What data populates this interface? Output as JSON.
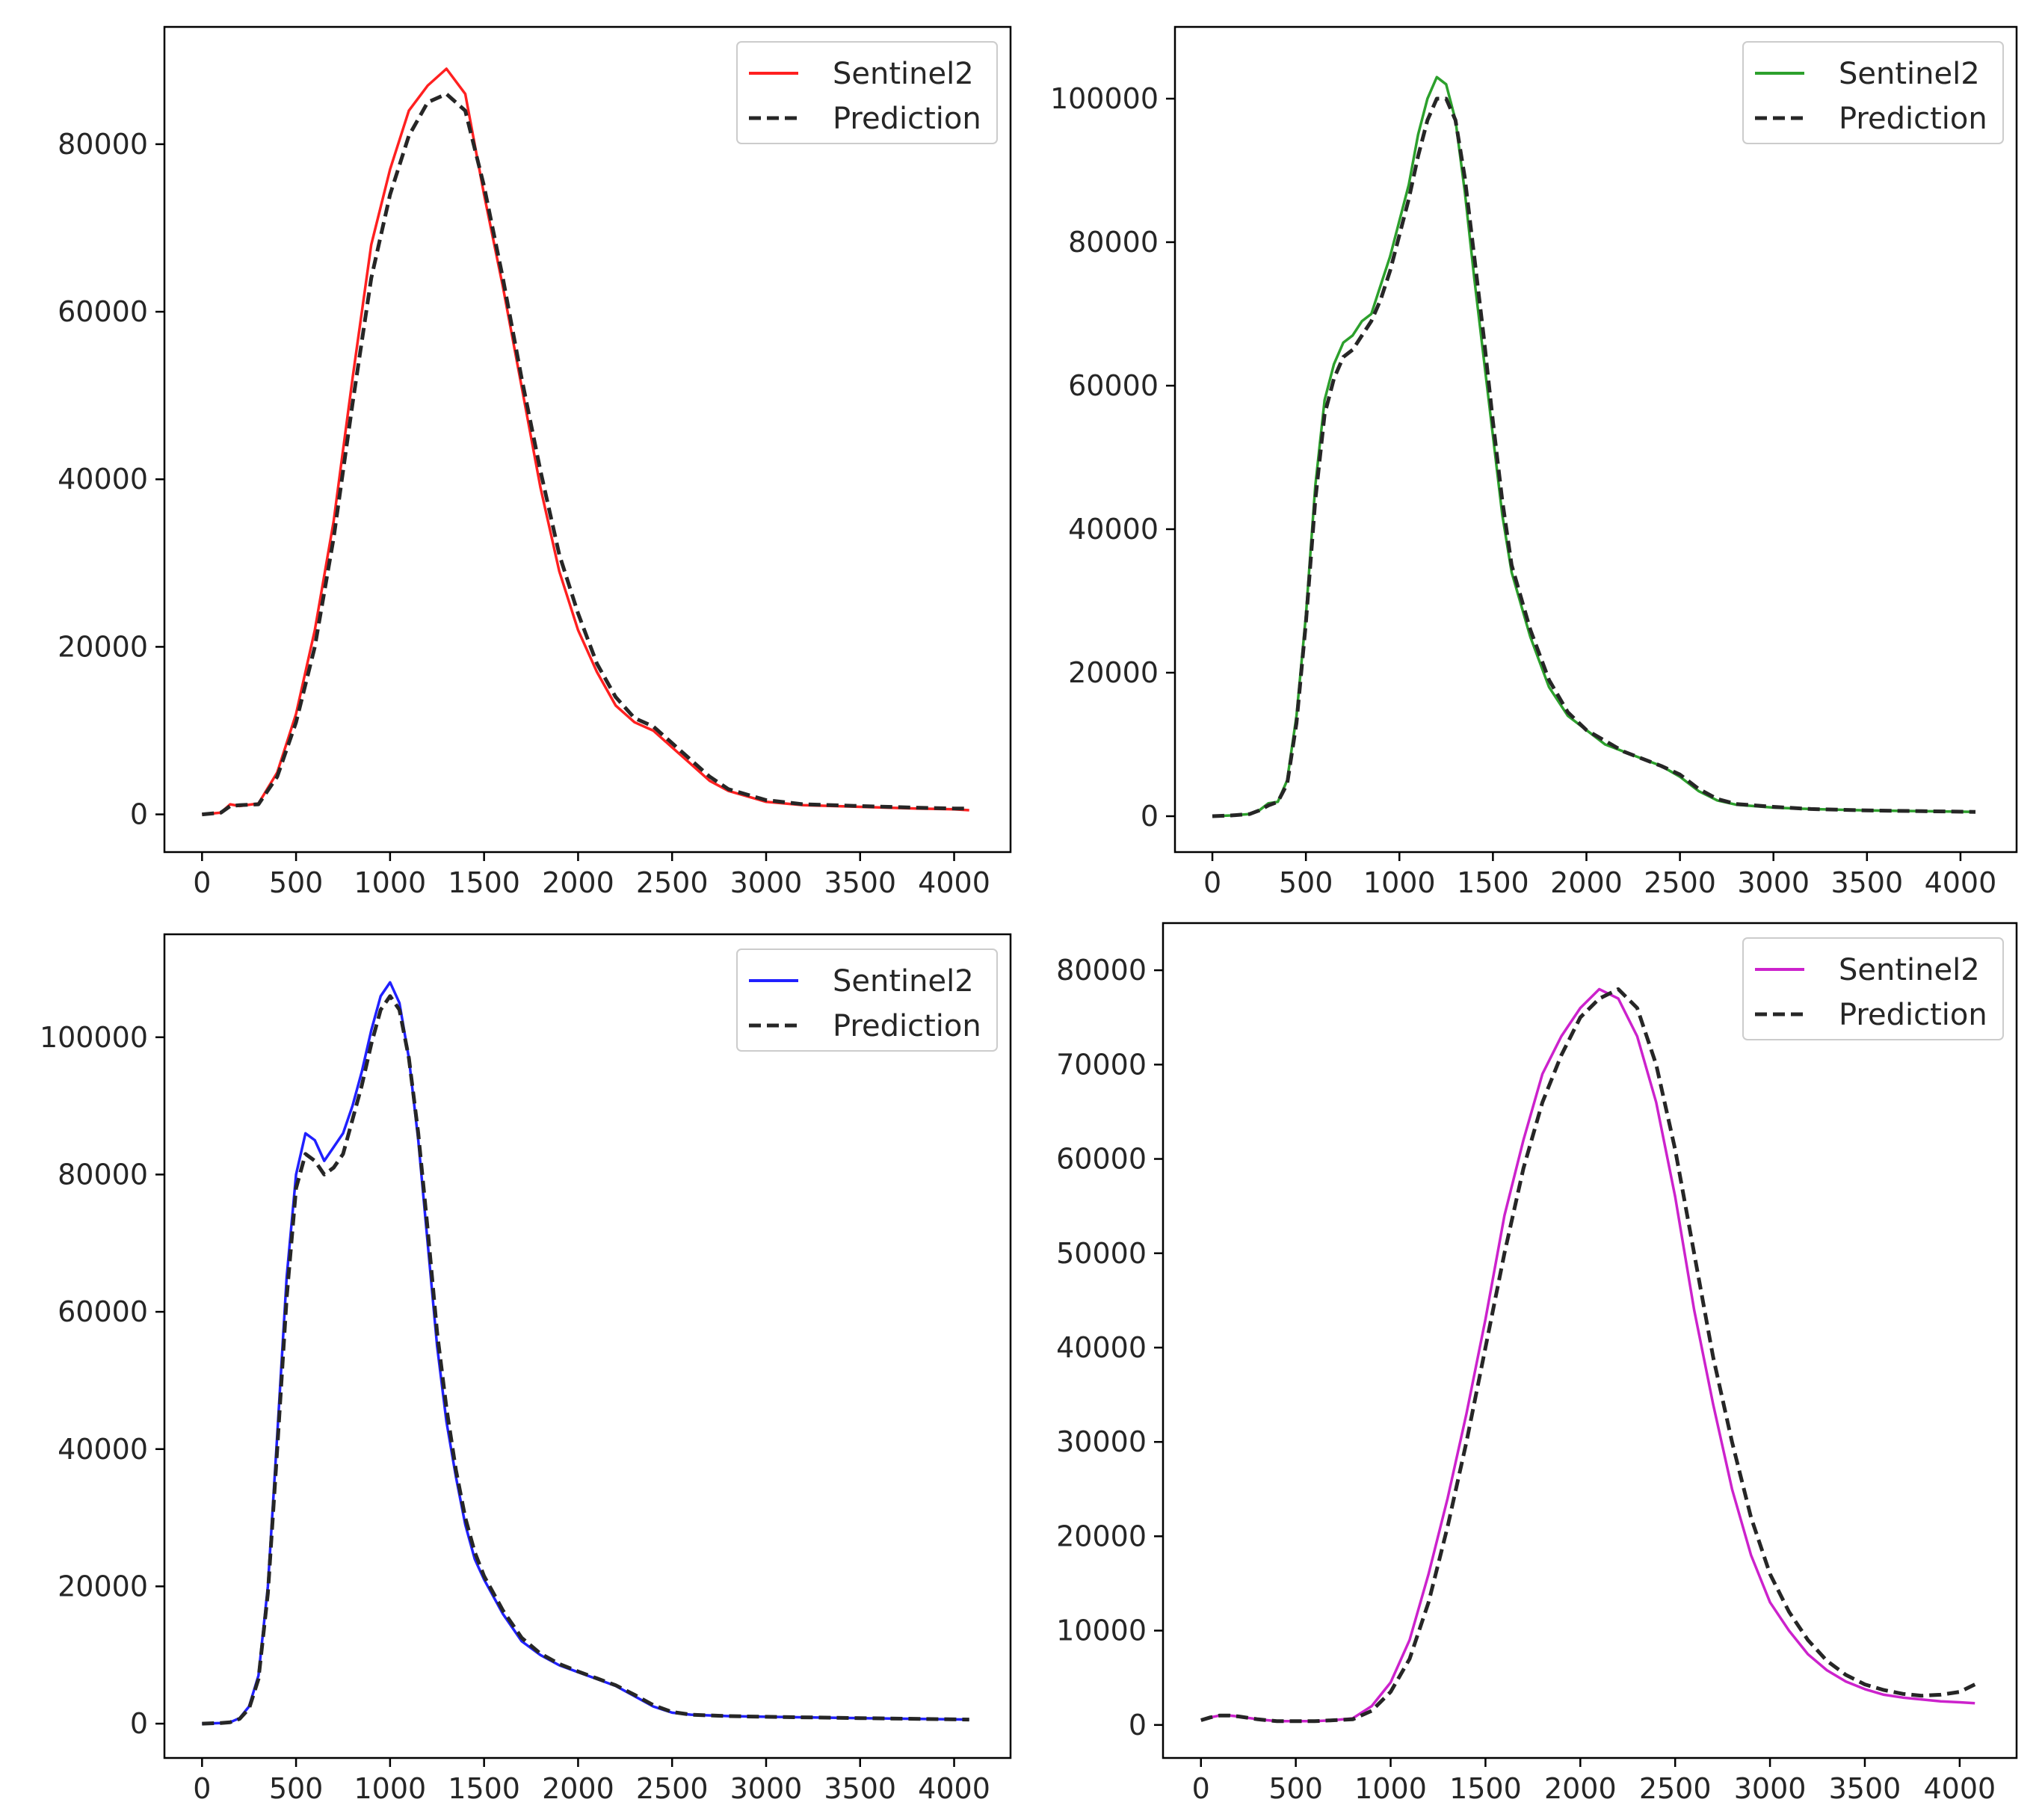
{
  "chart_data": [
    {
      "type": "line",
      "id": "panel-red",
      "title": "",
      "xlabel": "",
      "ylabel": "",
      "xlim": [
        -200,
        4300
      ],
      "ylim": [
        -4500,
        94000
      ],
      "xticks": [
        0,
        500,
        1000,
        1500,
        2000,
        2500,
        3000,
        3500,
        4000
      ],
      "yticks": [
        0,
        20000,
        40000,
        60000,
        80000
      ],
      "legend_position": "top-right",
      "series": [
        {
          "name": "Sentinel2",
          "color": "#ff2020",
          "style": "solid",
          "x": [
            0,
            100,
            150,
            200,
            300,
            400,
            500,
            600,
            700,
            800,
            900,
            1000,
            1100,
            1200,
            1300,
            1400,
            1500,
            1600,
            1700,
            1800,
            1900,
            2000,
            2100,
            2200,
            2300,
            2400,
            2500,
            2600,
            2700,
            2800,
            3000,
            3200,
            3500,
            3800,
            4000,
            4080
          ],
          "y": [
            0,
            200,
            1200,
            1000,
            1300,
            5000,
            12000,
            22000,
            35000,
            52000,
            68000,
            77000,
            84000,
            87000,
            89000,
            86000,
            74000,
            63000,
            51000,
            39000,
            29000,
            22000,
            17000,
            13000,
            11000,
            10000,
            8000,
            6000,
            4000,
            2800,
            1500,
            1100,
            900,
            700,
            600,
            500
          ]
        },
        {
          "name": "Prediction",
          "color": "#262626",
          "style": "dashed",
          "x": [
            0,
            100,
            150,
            200,
            300,
            400,
            500,
            600,
            700,
            800,
            900,
            1000,
            1100,
            1200,
            1300,
            1400,
            1500,
            1600,
            1700,
            1800,
            1900,
            2000,
            2100,
            2200,
            2300,
            2400,
            2500,
            2600,
            2700,
            2800,
            3000,
            3200,
            3500,
            3800,
            4000,
            4080
          ],
          "y": [
            0,
            200,
            1000,
            1100,
            1200,
            4500,
            11000,
            20000,
            33000,
            49000,
            64000,
            74000,
            81000,
            85000,
            86000,
            84000,
            75000,
            64000,
            52000,
            41000,
            31000,
            24000,
            18000,
            14000,
            11500,
            10500,
            8500,
            6500,
            4500,
            3000,
            1700,
            1200,
            1000,
            800,
            700,
            700
          ]
        }
      ],
      "legend": [
        "Sentinel2",
        "Prediction"
      ]
    },
    {
      "type": "line",
      "id": "panel-green",
      "title": "",
      "xlabel": "",
      "ylabel": "",
      "xlim": [
        -200,
        4300
      ],
      "ylim": [
        -5000,
        110000
      ],
      "xticks": [
        0,
        500,
        1000,
        1500,
        2000,
        2500,
        3000,
        3500,
        4000
      ],
      "yticks": [
        0,
        20000,
        40000,
        60000,
        80000,
        100000
      ],
      "legend_position": "top-right",
      "series": [
        {
          "name": "Sentinel2",
          "color": "#2ca02c",
          "style": "solid",
          "x": [
            0,
            100,
            200,
            250,
            300,
            350,
            400,
            450,
            500,
            550,
            600,
            650,
            700,
            750,
            800,
            850,
            900,
            950,
            1000,
            1050,
            1100,
            1150,
            1200,
            1250,
            1300,
            1350,
            1400,
            1450,
            1500,
            1550,
            1600,
            1700,
            1800,
            1900,
            2000,
            2100,
            2200,
            2300,
            2400,
            2500,
            2600,
            2700,
            2800,
            3000,
            3200,
            3500,
            3800,
            4080
          ],
          "y": [
            0,
            100,
            300,
            800,
            1800,
            2000,
            5000,
            14000,
            28000,
            46000,
            58000,
            63000,
            66000,
            67000,
            69000,
            70000,
            74000,
            78000,
            83000,
            88000,
            95000,
            100000,
            103000,
            102000,
            97000,
            87000,
            75000,
            64000,
            53000,
            42000,
            34000,
            25000,
            18000,
            14000,
            12000,
            10000,
            9000,
            8000,
            7000,
            5500,
            3500,
            2200,
            1600,
            1200,
            1000,
            800,
            700,
            600
          ]
        },
        {
          "name": "Prediction",
          "color": "#262626",
          "style": "dashed",
          "x": [
            0,
            100,
            200,
            250,
            300,
            350,
            400,
            450,
            500,
            550,
            600,
            650,
            700,
            750,
            800,
            850,
            900,
            950,
            1000,
            1050,
            1100,
            1150,
            1200,
            1250,
            1300,
            1350,
            1400,
            1450,
            1500,
            1550,
            1600,
            1700,
            1800,
            1900,
            2000,
            2100,
            2200,
            2300,
            2400,
            2500,
            2600,
            2700,
            2800,
            3000,
            3200,
            3500,
            3800,
            4080
          ],
          "y": [
            0,
            100,
            300,
            800,
            1500,
            2000,
            4500,
            13000,
            27000,
            44000,
            56000,
            61000,
            64000,
            65000,
            67000,
            69000,
            72000,
            76000,
            81000,
            86000,
            92000,
            97000,
            100000,
            100000,
            97000,
            89000,
            78000,
            67000,
            55000,
            44000,
            35000,
            26000,
            19000,
            14500,
            12000,
            10500,
            9000,
            8000,
            7000,
            5800,
            3800,
            2400,
            1700,
            1300,
            1000,
            800,
            700,
            600
          ]
        }
      ],
      "legend": [
        "Sentinel2",
        "Prediction"
      ]
    },
    {
      "type": "line",
      "id": "panel-blue",
      "title": "",
      "xlabel": "",
      "ylabel": "",
      "xlim": [
        -200,
        4300
      ],
      "ylim": [
        -5000,
        115000
      ],
      "xticks": [
        0,
        500,
        1000,
        1500,
        2000,
        2500,
        3000,
        3500,
        4000
      ],
      "yticks": [
        0,
        20000,
        40000,
        60000,
        80000,
        100000
      ],
      "legend_position": "top-right",
      "series": [
        {
          "name": "Sentinel2",
          "color": "#2020ff",
          "style": "solid",
          "x": [
            0,
            100,
            150,
            200,
            250,
            300,
            350,
            400,
            450,
            500,
            550,
            600,
            650,
            700,
            750,
            800,
            850,
            900,
            950,
            1000,
            1050,
            1100,
            1150,
            1200,
            1250,
            1300,
            1350,
            1400,
            1450,
            1500,
            1600,
            1700,
            1800,
            1900,
            2000,
            2100,
            2200,
            2300,
            2400,
            2500,
            2600,
            2800,
            3000,
            3500,
            4080
          ],
          "y": [
            0,
            100,
            200,
            800,
            2500,
            7000,
            20000,
            42000,
            65000,
            80000,
            86000,
            85000,
            82000,
            84000,
            86000,
            90000,
            95000,
            101000,
            106000,
            108000,
            105000,
            97000,
            85000,
            70000,
            55000,
            44000,
            36000,
            29000,
            24000,
            21000,
            16000,
            12000,
            10000,
            8500,
            7500,
            6500,
            5500,
            4000,
            2500,
            1600,
            1300,
            1100,
            1000,
            800,
            600
          ]
        },
        {
          "name": "Prediction",
          "color": "#262626",
          "style": "dashed",
          "x": [
            0,
            100,
            150,
            200,
            250,
            300,
            350,
            400,
            450,
            500,
            550,
            600,
            650,
            700,
            750,
            800,
            850,
            900,
            950,
            1000,
            1050,
            1100,
            1150,
            1200,
            1250,
            1300,
            1350,
            1400,
            1450,
            1500,
            1600,
            1700,
            1800,
            1900,
            2000,
            2100,
            2200,
            2300,
            2400,
            2500,
            2600,
            2800,
            3000,
            3500,
            4080
          ],
          "y": [
            0,
            100,
            200,
            700,
            2200,
            6500,
            19000,
            40000,
            62000,
            78000,
            83000,
            82000,
            80000,
            81000,
            83000,
            88000,
            93000,
            99000,
            104000,
            106000,
            104000,
            97000,
            86000,
            72000,
            57000,
            46000,
            37000,
            30000,
            25000,
            21500,
            16500,
            12500,
            10200,
            8700,
            7600,
            6600,
            5600,
            4200,
            2700,
            1700,
            1300,
            1100,
            1000,
            800,
            600
          ]
        }
      ],
      "legend": [
        "Sentinel2",
        "Prediction"
      ]
    },
    {
      "type": "line",
      "id": "panel-magenta",
      "title": "",
      "xlabel": "",
      "ylabel": "",
      "xlim": [
        -200,
        4300
      ],
      "ylim": [
        -3500,
        85000
      ],
      "xticks": [
        0,
        500,
        1000,
        1500,
        2000,
        2500,
        3000,
        3500,
        4000
      ],
      "yticks": [
        0,
        10000,
        20000,
        30000,
        40000,
        50000,
        60000,
        70000,
        80000
      ],
      "legend_position": "top-right",
      "series": [
        {
          "name": "Sentinel2",
          "color": "#cc22cc",
          "style": "solid",
          "x": [
            0,
            50,
            100,
            150,
            200,
            300,
            400,
            500,
            600,
            700,
            800,
            900,
            1000,
            1100,
            1200,
            1300,
            1400,
            1500,
            1600,
            1700,
            1800,
            1900,
            2000,
            2100,
            2200,
            2300,
            2400,
            2500,
            2600,
            2700,
            2800,
            2900,
            3000,
            3100,
            3200,
            3300,
            3400,
            3500,
            3600,
            3700,
            3800,
            3900,
            4000,
            4080
          ],
          "y": [
            500,
            800,
            1000,
            1000,
            900,
            600,
            400,
            400,
            400,
            500,
            700,
            2000,
            4500,
            9000,
            16000,
            24000,
            33000,
            43000,
            54000,
            62000,
            69000,
            73000,
            76000,
            78000,
            77000,
            73000,
            66000,
            56000,
            44000,
            34000,
            25000,
            18000,
            13000,
            10000,
            7500,
            5800,
            4600,
            3800,
            3200,
            2900,
            2700,
            2500,
            2400,
            2300
          ]
        },
        {
          "name": "Prediction",
          "color": "#262626",
          "style": "dashed",
          "x": [
            0,
            50,
            100,
            150,
            200,
            300,
            400,
            500,
            600,
            700,
            800,
            900,
            1000,
            1100,
            1200,
            1300,
            1400,
            1500,
            1600,
            1700,
            1800,
            1900,
            2000,
            2100,
            2200,
            2300,
            2400,
            2500,
            2600,
            2700,
            2800,
            2900,
            3000,
            3100,
            3200,
            3300,
            3400,
            3500,
            3600,
            3700,
            3800,
            3900,
            4000,
            4080
          ],
          "y": [
            500,
            800,
            1000,
            1000,
            900,
            600,
            400,
            400,
            400,
            500,
            600,
            1500,
            3500,
            7000,
            13000,
            21000,
            30000,
            40000,
            50000,
            59000,
            66000,
            71000,
            75000,
            77000,
            78000,
            76000,
            70000,
            61000,
            50000,
            39000,
            30000,
            22000,
            16000,
            12000,
            9000,
            6800,
            5300,
            4300,
            3700,
            3300,
            3100,
            3200,
            3500,
            4300
          ]
        }
      ],
      "legend": [
        "Sentinel2",
        "Prediction"
      ]
    }
  ]
}
